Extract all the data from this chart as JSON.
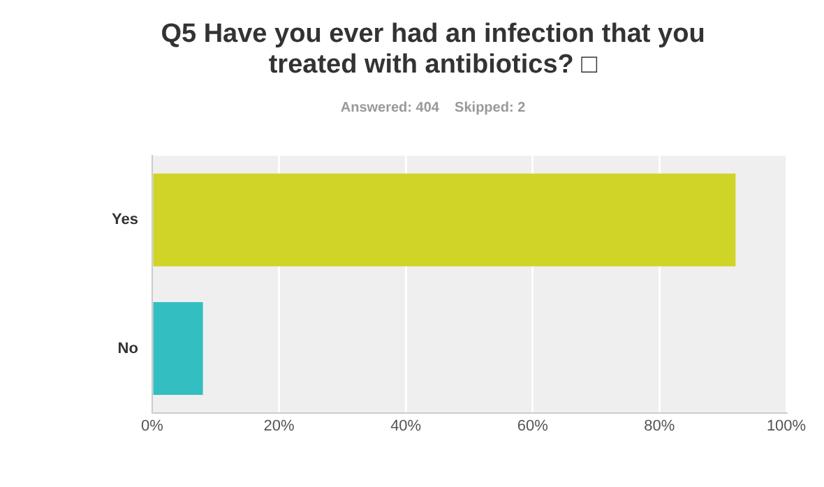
{
  "chart_data": {
    "type": "bar",
    "orientation": "horizontal",
    "title": "Q5 Have you ever had an infection that you treated with antibiotics? □",
    "subtitle": "Answered: 404    Skipped: 2",
    "categories": [
      "Yes",
      "No"
    ],
    "values": [
      92,
      8
    ],
    "colors": [
      "#d0d426",
      "#33bfc1"
    ],
    "xlim": [
      0,
      100
    ],
    "xticks": [
      {
        "value": 0,
        "label": "0%"
      },
      {
        "value": 20,
        "label": "20%"
      },
      {
        "value": 40,
        "label": "40%"
      },
      {
        "value": 60,
        "label": "60%"
      },
      {
        "value": 80,
        "label": "80%"
      },
      {
        "value": 100,
        "label": "100%"
      }
    ],
    "grid": "x"
  }
}
